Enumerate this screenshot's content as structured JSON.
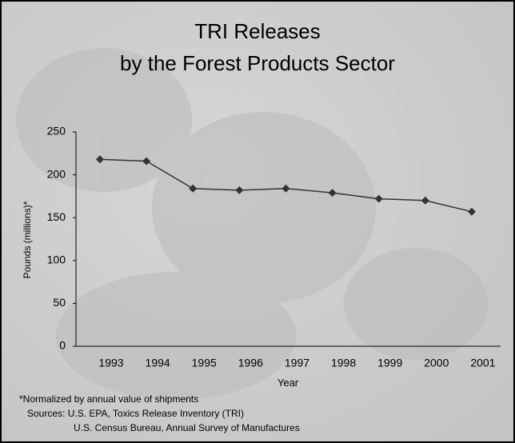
{
  "chart_data": {
    "type": "line",
    "title": [
      "TRI Releases",
      "by the Forest Products Sector"
    ],
    "y_label": "Pounds (millions)*",
    "x_label": "Year",
    "categories": [
      "1993",
      "1994",
      "1995",
      "1996",
      "1997",
      "1998",
      "1999",
      "2000",
      "2001"
    ],
    "values": [
      218,
      216,
      184,
      182,
      184,
      179,
      172,
      170,
      157
    ],
    "color": "#333333",
    "ylim": [
      0,
      250
    ],
    "yticks": [
      0,
      50,
      100,
      150,
      200,
      250
    ],
    "notes": [
      "*Normalized by annual value of shipments",
      "Sources: U.S. EPA, Toxics Release Inventory (TRI)",
      "U.S. Census Bureau, Annual Survey of Manufactures"
    ]
  }
}
